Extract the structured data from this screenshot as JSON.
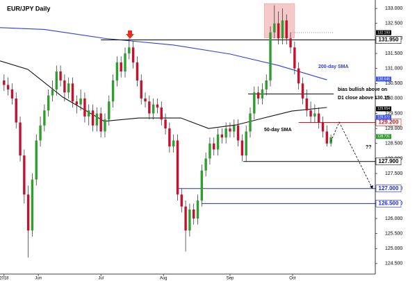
{
  "chart_data": {
    "type": "candlestick",
    "title": "EUR/JPY Daily",
    "up_color": "#2e9e2e",
    "down_color": "#c8102e",
    "xlim": [
      -1,
      92
    ],
    "ylim": [
      124.15,
      133.28
    ],
    "xticks": [
      {
        "value": 0,
        "label": "2018"
      },
      {
        "value": 8.5,
        "label": "Jun"
      },
      {
        "value": 24,
        "label": "Jul"
      },
      {
        "value": 39.5,
        "label": "Aug"
      },
      {
        "value": 56,
        "label": "Sep"
      },
      {
        "value": 71.5,
        "label": "Oct"
      }
    ],
    "yticks": [
      {
        "value": 124.5,
        "label": "124.500"
      },
      {
        "value": 125,
        "label": "125.000"
      },
      {
        "value": 125.5,
        "label": "125.500"
      },
      {
        "value": 126,
        "label": "126.000"
      },
      {
        "value": 126.5,
        "label": "126.500"
      },
      {
        "value": 127,
        "label": "127.000"
      },
      {
        "value": 127.5,
        "label": "127.500"
      },
      {
        "value": 128,
        "label": "128.000"
      },
      {
        "value": 128.5,
        "label": "128.500"
      },
      {
        "value": 129,
        "label": "129.000"
      },
      {
        "value": 129.5,
        "label": "129.500"
      },
      {
        "value": 130,
        "label": "130.000"
      },
      {
        "value": 130.5,
        "label": "130.500"
      },
      {
        "value": 131,
        "label": "131.000"
      },
      {
        "value": 131.5,
        "label": "131.500"
      },
      {
        "value": 132,
        "label": "132.000"
      },
      {
        "value": 132.5,
        "label": "132.500"
      },
      {
        "value": 133,
        "label": "133.000"
      }
    ],
    "ohlc": [
      [
        130.6,
        130.8,
        130.25,
        130.45
      ],
      [
        130.45,
        130.7,
        130.1,
        130.3
      ],
      [
        130.3,
        130.5,
        129.8,
        130.0
      ],
      [
        130.0,
        130.2,
        129.0,
        129.2
      ],
      [
        129.2,
        129.4,
        127.9,
        128.1
      ],
      [
        128.1,
        128.3,
        126.5,
        126.8
      ],
      [
        126.8,
        127.1,
        124.7,
        125.6
      ],
      [
        125.6,
        127.5,
        125.4,
        127.3
      ],
      [
        127.3,
        128.8,
        127.1,
        128.6
      ],
      [
        128.6,
        129.4,
        128.4,
        129.1
      ],
      [
        129.1,
        129.8,
        128.9,
        129.6
      ],
      [
        129.6,
        130.3,
        129.4,
        130.1
      ],
      [
        130.1,
        130.6,
        129.9,
        130.3
      ],
      [
        130.3,
        131.1,
        130.1,
        130.9
      ],
      [
        130.9,
        131.1,
        130.4,
        130.6
      ],
      [
        130.6,
        130.8,
        129.9,
        130.2
      ],
      [
        130.2,
        130.7,
        130.0,
        130.5
      ],
      [
        130.5,
        130.7,
        129.7,
        129.9
      ],
      [
        129.9,
        130.1,
        129.5,
        129.8
      ],
      [
        129.8,
        130.3,
        129.6,
        130.0
      ],
      [
        130.0,
        130.2,
        129.2,
        129.4
      ],
      [
        129.4,
        129.8,
        129.1,
        129.6
      ],
      [
        129.6,
        129.8,
        128.9,
        129.1
      ],
      [
        129.1,
        129.7,
        128.9,
        129.5
      ],
      [
        129.5,
        129.7,
        128.7,
        128.9
      ],
      [
        128.9,
        129.5,
        128.7,
        129.3
      ],
      [
        129.3,
        130.1,
        129.1,
        129.9
      ],
      [
        129.9,
        130.8,
        129.7,
        130.6
      ],
      [
        130.6,
        131.4,
        130.4,
        131.2
      ],
      [
        131.2,
        131.4,
        130.7,
        130.9
      ],
      [
        130.9,
        131.7,
        130.7,
        131.5
      ],
      [
        131.5,
        132.0,
        131.3,
        131.7
      ],
      [
        131.7,
        131.9,
        131.0,
        131.2
      ],
      [
        131.2,
        131.4,
        130.4,
        130.6
      ],
      [
        130.6,
        130.8,
        129.8,
        130.0
      ],
      [
        130.0,
        130.2,
        129.7,
        129.9
      ],
      [
        129.9,
        130.1,
        129.3,
        129.5
      ],
      [
        129.5,
        130.0,
        129.3,
        129.8
      ],
      [
        129.8,
        130.0,
        129.5,
        129.7
      ],
      [
        129.7,
        129.9,
        129.1,
        129.3
      ],
      [
        129.3,
        129.5,
        128.8,
        129.0
      ],
      [
        129.0,
        129.2,
        128.2,
        128.4
      ],
      [
        128.4,
        128.8,
        128.2,
        128.6
      ],
      [
        128.6,
        128.8,
        126.6,
        126.8
      ],
      [
        126.8,
        127.0,
        126.2,
        126.4
      ],
      [
        126.4,
        126.6,
        124.9,
        125.6
      ],
      [
        125.6,
        126.5,
        125.4,
        126.3
      ],
      [
        126.3,
        126.5,
        125.8,
        126.0
      ],
      [
        126.0,
        126.8,
        125.8,
        126.6
      ],
      [
        126.6,
        127.8,
        126.4,
        127.6
      ],
      [
        127.6,
        128.2,
        127.4,
        128.0
      ],
      [
        128.0,
        128.7,
        127.8,
        128.5
      ],
      [
        128.5,
        128.7,
        128.1,
        128.3
      ],
      [
        128.3,
        129.0,
        128.1,
        128.8
      ],
      [
        128.8,
        129.0,
        128.5,
        128.7
      ],
      [
        128.7,
        129.2,
        128.5,
        129.0
      ],
      [
        129.0,
        129.2,
        128.7,
        128.9
      ],
      [
        128.9,
        129.3,
        128.7,
        129.1
      ],
      [
        129.1,
        129.3,
        128.4,
        128.6
      ],
      [
        128.6,
        128.8,
        127.9,
        128.1
      ],
      [
        128.1,
        129.1,
        127.9,
        128.9
      ],
      [
        128.9,
        129.7,
        128.7,
        129.5
      ],
      [
        129.5,
        130.4,
        129.3,
        130.2
      ],
      [
        130.2,
        130.4,
        129.8,
        130.0
      ],
      [
        130.0,
        130.5,
        129.8,
        130.3
      ],
      [
        130.3,
        130.8,
        130.1,
        130.6
      ],
      [
        130.6,
        132.4,
        130.4,
        132.2
      ],
      [
        132.2,
        133.1,
        132.0,
        132.5
      ],
      [
        132.5,
        132.9,
        131.8,
        132.0
      ],
      [
        132.0,
        133.0,
        131.8,
        132.6
      ],
      [
        132.6,
        132.8,
        131.8,
        132.0
      ],
      [
        132.0,
        132.2,
        131.5,
        131.7
      ],
      [
        131.7,
        131.9,
        130.8,
        131.0
      ],
      [
        131.0,
        131.2,
        130.3,
        130.5
      ],
      [
        130.5,
        130.7,
        129.8,
        130.0
      ],
      [
        130.0,
        130.3,
        129.4,
        129.6
      ],
      [
        129.6,
        129.9,
        129.2,
        129.4
      ],
      [
        129.4,
        129.8,
        129.2,
        129.5
      ],
      [
        129.5,
        129.7,
        129.0,
        129.2
      ],
      [
        129.2,
        129.4,
        128.7,
        128.9
      ],
      [
        128.9,
        129.1,
        128.4,
        128.5
      ],
      [
        128.5,
        128.8,
        128.4,
        128.7
      ]
    ],
    "lines": [
      {
        "name": "200-day SMA",
        "color": "#2b3fe0",
        "x": [
          -1,
          10,
          25,
          42,
          56,
          68,
          80
        ],
        "values": [
          132.36,
          132.3,
          132.0,
          131.78,
          131.48,
          131.1,
          130.62
        ]
      },
      {
        "name": "50-day SMA",
        "color": "#111111",
        "x": [
          -1,
          5.9,
          14.5,
          24.8,
          33.4,
          43.8,
          50.7,
          57.6,
          64.4,
          71.3,
          80
        ],
        "values": [
          131.25,
          130.97,
          130.05,
          129.24,
          129.35,
          129.35,
          129.0,
          129.12,
          129.35,
          129.58,
          129.7
        ]
      }
    ],
    "levels": [
      {
        "value": 131.95,
        "label": "131.950",
        "color": "#000000",
        "from": 24
      },
      {
        "value": 130.15,
        "color": "#000000",
        "from": 60.5,
        "to": 81.7
      },
      {
        "value": 129.2,
        "label": "129.200",
        "color": "#e01010",
        "from": 73
      },
      {
        "value": 127.9,
        "label": "127.900",
        "color": "#000000",
        "from": 59.3
      },
      {
        "value": 127.0,
        "label": "127.000",
        "color": "#1a2bd6",
        "from": 43
      },
      {
        "value": 126.5,
        "label": "126.500",
        "color": "#1a2bd6",
        "from": 49
      },
      {
        "value": 132.193,
        "color": "#888888",
        "from": 71,
        "to": 81.5,
        "dotted": true
      }
    ],
    "price_tags": [
      {
        "value": 132.193,
        "label": "132.193",
        "color": "#000000"
      },
      {
        "value": 130.646,
        "label": "130.646",
        "color": "#3a55f0"
      },
      {
        "value": 129.654,
        "label": "129.654",
        "color": "#000000"
      },
      {
        "value": 129.372,
        "label": "129.372",
        "color": "#3a55f0"
      },
      {
        "value": 128.731,
        "label": "128.731",
        "color": "#2e9e2e"
      }
    ],
    "highlight": {
      "x": [
        64.5,
        72
      ],
      "y": [
        132.01,
        133.16
      ],
      "color": "#f5c9c9"
    },
    "annotations": [
      "bias bullish above on",
      "D1 close above 130.15",
      "??"
    ]
  }
}
